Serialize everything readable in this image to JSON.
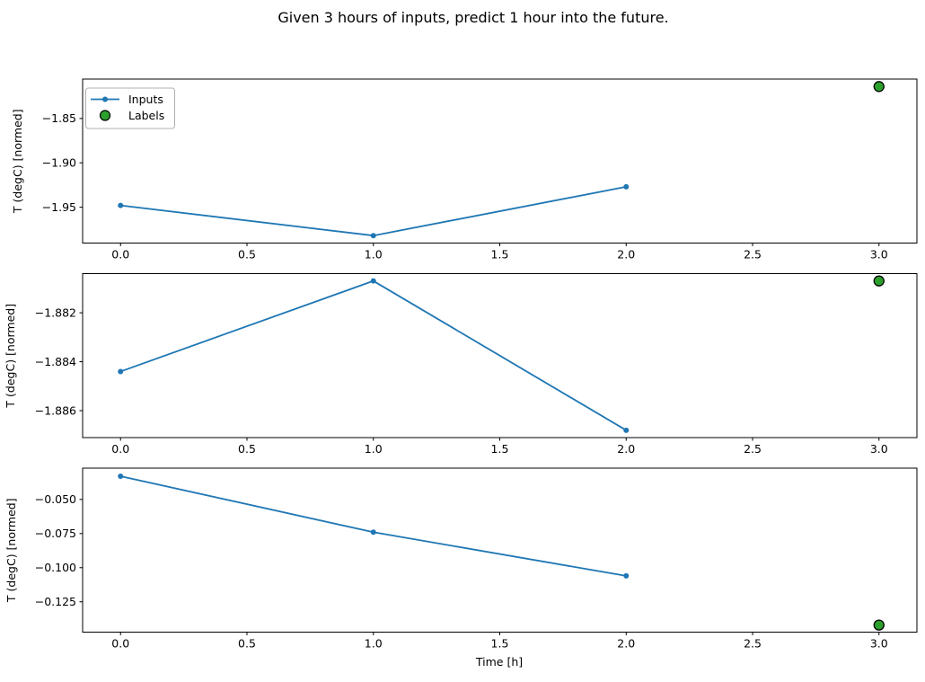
{
  "title": "Given 3 hours of inputs, predict 1 hour into the future.",
  "colors": {
    "background": "#ffffff",
    "inputs_line": "#1f77b4",
    "labels_fill": "#2ca02c",
    "labels_edge": "#000000",
    "axis": "#000000",
    "legend_border": "#b0b0b0",
    "text": "#000000"
  },
  "legend": {
    "items": [
      {
        "label": "Inputs",
        "marker": "line-with-dot-marker"
      },
      {
        "label": "Labels",
        "marker": "filled-circle-black-edge"
      }
    ]
  },
  "x_axis": {
    "label": "Time [h]",
    "xlim": [
      -0.15,
      3.15
    ],
    "ticks": [
      0.0,
      0.5,
      1.0,
      1.5,
      2.0,
      2.5,
      3.0
    ],
    "tick_labels": [
      "0.0",
      "0.5",
      "1.0",
      "1.5",
      "2.0",
      "2.5",
      "3.0"
    ]
  },
  "chart_data": [
    {
      "type": "line",
      "subplot": 1,
      "ylabel": "T (degC) [normed]",
      "ylim": [
        -1.9904,
        -1.8056
      ],
      "yticks": [
        -1.95,
        -1.9,
        -1.85
      ],
      "ytick_labels": [
        "−1.95",
        "−1.90",
        "−1.85"
      ],
      "series": [
        {
          "name": "Inputs",
          "x": [
            0,
            1,
            2
          ],
          "y": [
            -1.948,
            -1.982,
            -1.927
          ]
        }
      ],
      "labels_scatter": {
        "name": "Labels",
        "x": [
          3
        ],
        "y": [
          -1.814
        ]
      }
    },
    {
      "type": "line",
      "subplot": 2,
      "ylabel": "T (degC) [normed]",
      "ylim": [
        -1.8871,
        -1.8804
      ],
      "yticks": [
        -1.886,
        -1.884,
        -1.882
      ],
      "ytick_labels": [
        "−1.886",
        "−1.884",
        "−1.882"
      ],
      "series": [
        {
          "name": "Inputs",
          "x": [
            0,
            1,
            2
          ],
          "y": [
            -1.8844,
            -1.8807,
            -1.8868
          ]
        }
      ],
      "labels_scatter": {
        "name": "Labels",
        "x": [
          3
        ],
        "y": [
          -1.8807
        ]
      }
    },
    {
      "type": "line",
      "subplot": 3,
      "ylabel": "T (degC) [normed]",
      "ylim": [
        -0.1472,
        -0.0271
      ],
      "yticks": [
        -0.125,
        -0.1,
        -0.075,
        -0.05
      ],
      "ytick_labels": [
        "−0.125",
        "−0.100",
        "−0.075",
        "−0.050"
      ],
      "series": [
        {
          "name": "Inputs",
          "x": [
            0,
            1,
            2
          ],
          "y": [
            -0.033,
            -0.074,
            -0.106
          ]
        }
      ],
      "labels_scatter": {
        "name": "Labels",
        "x": [
          3
        ],
        "y": [
          -0.142
        ]
      }
    }
  ]
}
